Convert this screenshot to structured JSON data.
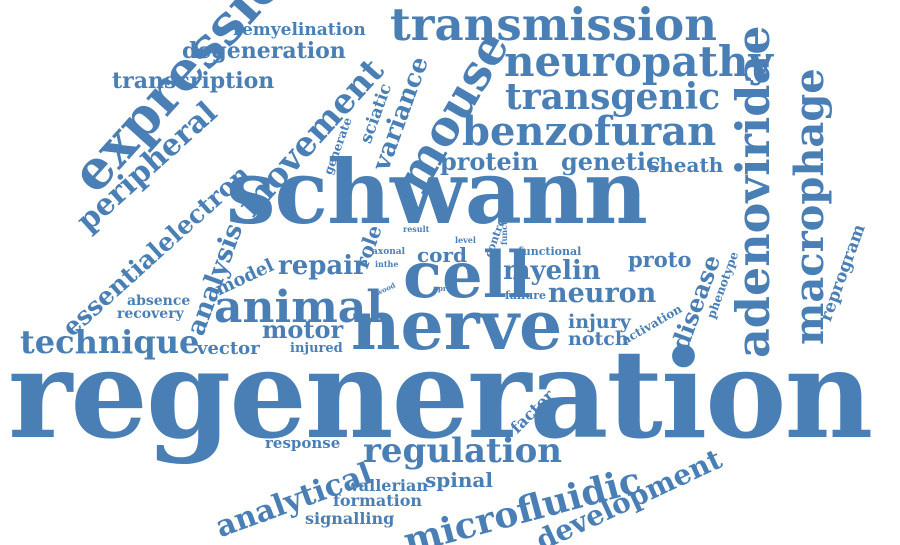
{
  "color": "#4a7fb5",
  "words": {
    "regeneration": "regeneration",
    "schwann": "schwann",
    "nerve": "nerve",
    "cell": "cell",
    "animal": "animal",
    "expression": "expression",
    "transmission": "transmission",
    "mouse": "mouse",
    "neuropathy": "neuropathy",
    "transgenic": "transgenic",
    "benzofuran": "benzofuran",
    "adenoviridae": "adenoviridae",
    "macrophage": "macrophage",
    "movement": "movement",
    "degeneration": "degeneration",
    "remyelination": "remyelination",
    "transcription": "transcription",
    "peripheral": "peripheral",
    "electron": "electron",
    "essential": "essential",
    "variance": "variance",
    "sciatic": "sciatic",
    "generate": "generate",
    "protein": "protein",
    "genetic": "genetic",
    "sheath": "sheath",
    "technique": "technique",
    "vector": "vector",
    "analysis": "analysis",
    "model": "model",
    "repair": "repair",
    "role": "role",
    "cord": "cord",
    "myelin": "myelin",
    "proto": "proto",
    "neuron": "neuron",
    "disease": "disease",
    "reprogram": "reprogram",
    "motor": "motor",
    "injury": "injury",
    "notch": "notch",
    "absence": "absence",
    "recovery": "recovery",
    "injured": "injured",
    "regulation": "regulation",
    "analytical": "analytical",
    "microfluidic": "microfluidic",
    "development": "development",
    "spinal": "spinal",
    "wallerian": "wallerian",
    "formation": "formation",
    "signalling": "signalling",
    "response": "response",
    "factor": "factor",
    "failure": "failure",
    "functional": "functional",
    "phenotype": "phenotype",
    "activation": "activation",
    "control": "control",
    "axonal": "axonal",
    "inthe": "inthe",
    "result": "result",
    "level": "level",
    "function": "function",
    "wood": "wood",
    "proc": "proc"
  }
}
